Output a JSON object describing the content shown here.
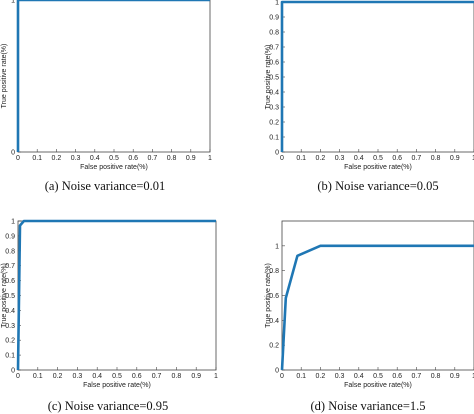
{
  "chart_data": [
    {
      "type": "line",
      "caption": "(a) Noise variance=0.01",
      "xlabel": "False positive rate(%)",
      "ylabel": "True positive rate(%)",
      "xlim": [
        0,
        1
      ],
      "ylim": [
        0,
        1
      ],
      "xticks": [
        "0",
        "0.1",
        "0.2",
        "0.3",
        "0.4",
        "0.5",
        "0.6",
        "0.7",
        "0.8",
        "0.9",
        "1"
      ],
      "yticks": [
        "0",
        "1"
      ],
      "grid": false,
      "series": [
        {
          "color": "#1f77b4",
          "x": [
            0,
            0,
            1
          ],
          "y": [
            0,
            1,
            1
          ]
        }
      ]
    },
    {
      "type": "line",
      "caption": "(b) Noise variance=0.05",
      "xlabel": "False positive rate(%)",
      "ylabel": "True positive rate(%)",
      "xlim": [
        0,
        1
      ],
      "ylim": [
        0,
        1
      ],
      "xticks": [
        "0",
        "0.1",
        "0.2",
        "0.3",
        "0.4",
        "0.5",
        "0.6",
        "0.7",
        "0.8",
        "0.9",
        "1"
      ],
      "yticks": [
        "0",
        "0.1",
        "0.2",
        "0.3",
        "0.4",
        "0.5",
        "0.6",
        "0.7",
        "0.8",
        "0.9",
        "1"
      ],
      "grid": false,
      "series": [
        {
          "color": "#1f77b4",
          "x": [
            0,
            0,
            1
          ],
          "y": [
            0,
            1,
            1
          ]
        }
      ]
    },
    {
      "type": "line",
      "caption": "(c) Noise variance=0.95",
      "xlabel": "False positive rate(%)",
      "ylabel": "True positive rate(%)",
      "xlim": [
        0,
        1
      ],
      "ylim": [
        0,
        1
      ],
      "xticks": [
        "0",
        "0.1",
        "0.2",
        "0.3",
        "0.4",
        "0.5",
        "0.6",
        "0.7",
        "0.8",
        "0.9",
        "1"
      ],
      "yticks": [
        "0",
        "0.1",
        "0.2",
        "0.3",
        "0.4",
        "0.5",
        "0.6",
        "0.7",
        "0.8",
        "0.9",
        "1"
      ],
      "grid": false,
      "series": [
        {
          "color": "#1f77b4",
          "x": [
            0,
            0.01,
            0.03,
            1
          ],
          "y": [
            0,
            0.97,
            1,
            1
          ]
        }
      ]
    },
    {
      "type": "line",
      "caption": "(d) Noise variance=1.5",
      "xlabel": "False positive rate(%)",
      "ylabel": "True positive rate(%)",
      "xlim": [
        0,
        1
      ],
      "ylim": [
        0,
        1.2
      ],
      "xticks": [
        "0",
        "0.1",
        "0.2",
        "0.3",
        "0.4",
        "0.5",
        "0.6",
        "0.7",
        "0.8",
        "0.9",
        "1"
      ],
      "yticks": [
        "0",
        "0.2",
        "0.4",
        "0.6",
        "0.8",
        "1"
      ],
      "grid": false,
      "series": [
        {
          "color": "#1f77b4",
          "x": [
            0,
            0.02,
            0.08,
            0.2,
            0.4,
            1
          ],
          "y": [
            0,
            0.58,
            0.92,
            1,
            1,
            1
          ]
        }
      ]
    }
  ]
}
